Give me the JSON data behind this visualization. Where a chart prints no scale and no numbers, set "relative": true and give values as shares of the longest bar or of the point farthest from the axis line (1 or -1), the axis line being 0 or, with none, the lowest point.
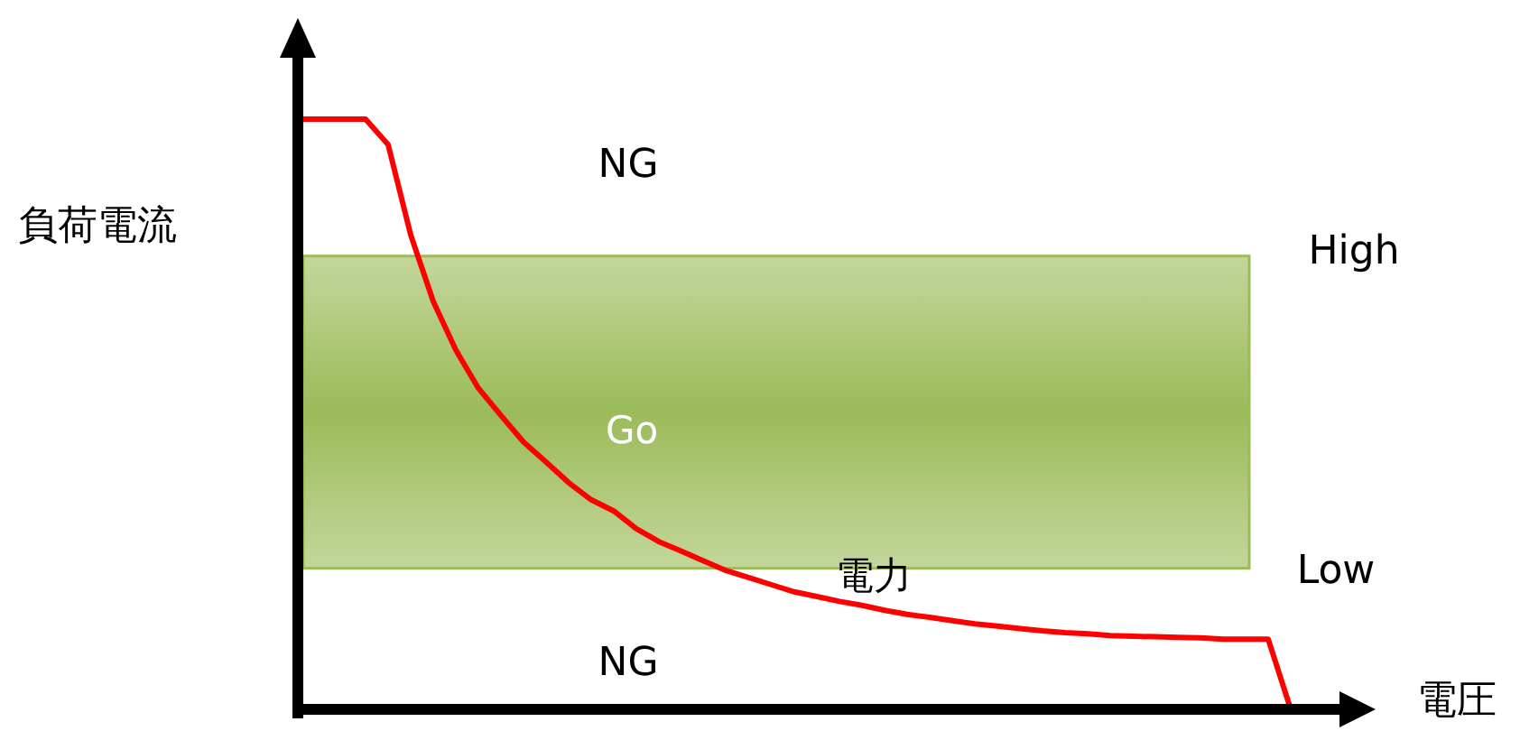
{
  "chart_data": {
    "type": "line",
    "relative": true,
    "xlabel": "電圧",
    "ylabel": "負荷電流",
    "categories": [
      null,
      null,
      null,
      null,
      null,
      null,
      null,
      null,
      null,
      null,
      null,
      null,
      null,
      null,
      null,
      null,
      null,
      null,
      null,
      null,
      null,
      null,
      null,
      null,
      null,
      null,
      null,
      null,
      null,
      null,
      null,
      null,
      null,
      null,
      null,
      null,
      null,
      null,
      null,
      null,
      null,
      null,
      null,
      null,
      null
    ],
    "series": [
      {
        "name": "電力",
        "color": "#ff0000",
        "values": [
          1,
          1,
          1,
          1,
          0.957,
          0.804,
          0.691,
          0.609,
          0.544,
          0.498,
          0.453,
          0.419,
          0.384,
          0.355,
          0.336,
          0.306,
          0.284,
          0.268,
          0.251,
          0.235,
          0.223,
          0.211,
          0.199,
          0.191,
          0.183,
          0.176,
          0.168,
          0.161,
          0.156,
          0.15,
          0.145,
          0.141,
          0.137,
          0.133,
          0.13,
          0.128,
          0.125,
          0.124,
          0.123,
          0.122,
          0.121,
          0.119,
          0.119,
          0.119,
          0
        ]
      }
    ],
    "bands": [
      {
        "axis": "y",
        "from": 0.239,
        "to": 0.768,
        "label": "Go",
        "color": "#9bbb59"
      }
    ],
    "annotations": [
      "NG",
      "NG",
      "High",
      "Low"
    ],
    "marker": "none",
    "line_style": "solid"
  }
}
